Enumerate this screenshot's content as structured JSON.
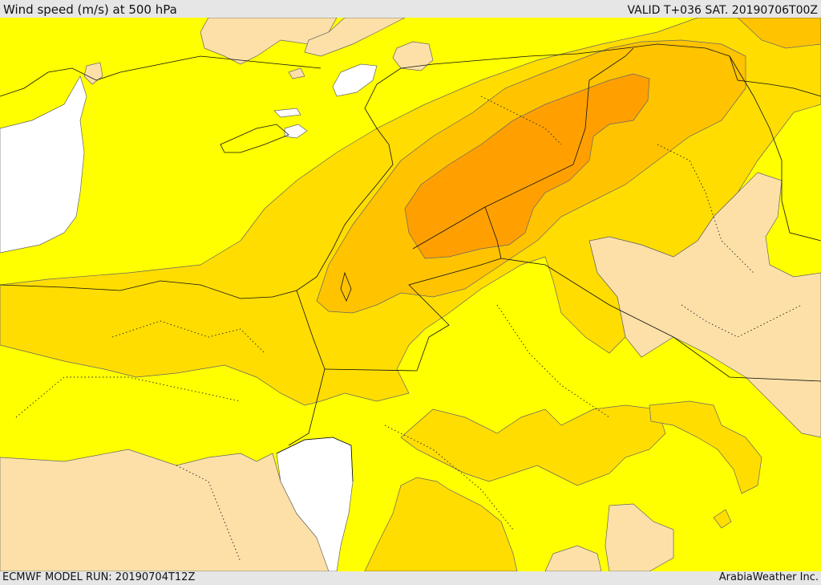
{
  "header": {
    "title": "Wind speed (m/s) at 500 hPa",
    "valid": "VALID T+036 SAT. 20190706T00Z"
  },
  "footer": {
    "model_run": "ECMWF MODEL RUN: 20190704T12Z",
    "credit": "ArabiaWeather Inc."
  },
  "legend_colors": {
    "sea_ice_white": "#ffffff",
    "light_tan": "#fde0a8",
    "yellow": "#ffff00",
    "gold": "#ffdd00",
    "light_orange": "#ffc300",
    "orange": "#ffa000"
  }
}
